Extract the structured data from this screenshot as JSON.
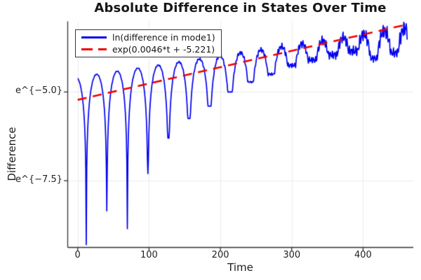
{
  "chart_data": {
    "type": "line",
    "title": "Absolute Difference in States Over Time",
    "xlabel": "Time",
    "ylabel": "Difference",
    "xlim": [
      -14,
      470.4
    ],
    "ylim_ln": [
      -9.38,
      -3.01
    ],
    "xticks": [
      0,
      100,
      200,
      300,
      400
    ],
    "xticklabels": [
      "0",
      "100",
      "200",
      "300",
      "400"
    ],
    "yticks_ln": [
      -5.0,
      -7.5
    ],
    "yticklabels": [
      "e^{−5.0}",
      "e^{−7.5}"
    ],
    "grid": true,
    "legend_position": "top-left",
    "series": [
      {
        "name": "ln(difference in mode1)",
        "color": "#0000f0",
        "style": "solid",
        "width": 1.7,
        "model": {
          "kind": "ln-abs-oscillation",
          "envelope_ln_intercept": -4.58,
          "envelope_slope": 0.003,
          "period": 28.8,
          "t_start": 0,
          "t_end": 462,
          "cusp_times": [
            12,
            40.8,
            69.6,
            98.4,
            127.2,
            156,
            184.8,
            213.6,
            242.4,
            271.2,
            300,
            328.8,
            357.6,
            386.4,
            415.2,
            444
          ],
          "cusp_values_ln": [
            -9.3,
            -8.35,
            -8.85,
            -7.3,
            -6.3,
            -5.75,
            -5.4,
            -5.0,
            -4.72,
            -4.5,
            -4.25,
            -4.1,
            -3.95,
            -3.85,
            -4.05,
            -3.9
          ],
          "noise_base": 0.018,
          "noise_max_extra": 0.26
        }
      },
      {
        "name": "exp(0.0046*t + -5.221)",
        "color": "#f00000",
        "style": "dashed",
        "width": 2.6,
        "dash": [
          13,
          9
        ],
        "fit": {
          "slope": 0.0046,
          "intercept": -5.221,
          "t_start": 0,
          "t_end": 456
        }
      }
    ]
  },
  "colors": {
    "grid": "#ebebeb",
    "axis": "#2f2f2f",
    "text": "#1c1c1c"
  }
}
